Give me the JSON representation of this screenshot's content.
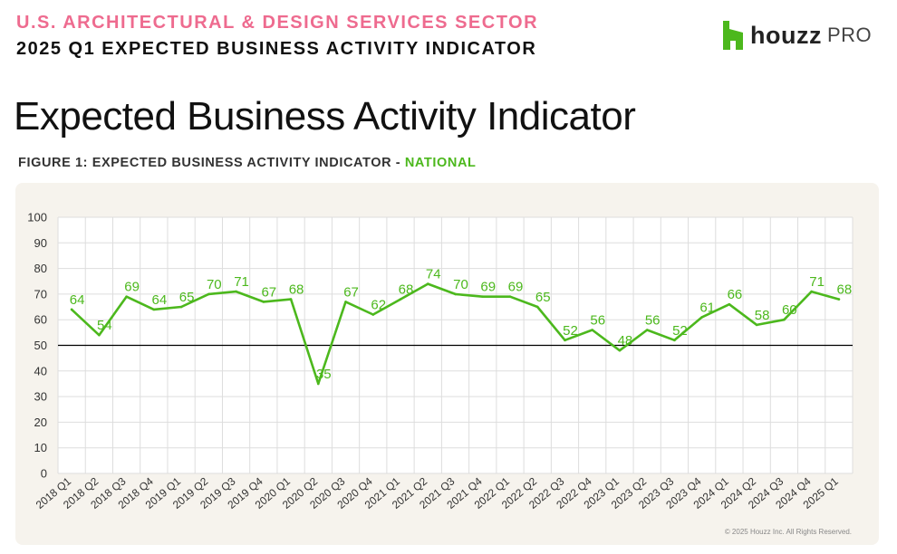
{
  "header": {
    "sector": "U.S. ARCHITECTURAL & DESIGN SERVICES SECTOR",
    "report": "2025 Q1 EXPECTED BUSINESS ACTIVITY INDICATOR"
  },
  "logo": {
    "brand": "houzz",
    "suffix": "PRO",
    "icon": "houzz-logo-icon"
  },
  "page_title": "Expected Business Activity Indicator",
  "figure": {
    "label": "FIGURE 1: EXPECTED BUSINESS ACTIVITY INDICATOR - ",
    "region": "NATIONAL"
  },
  "copyright": "© 2025 Houzz Inc. All Rights Reserved.",
  "colors": {
    "accent_pink": "#EE6B8F",
    "series_green": "#4CB81D",
    "panel_bg": "#F6F3ED"
  },
  "chart_data": {
    "type": "line",
    "title": "",
    "xlabel": "",
    "ylabel": "",
    "ylim": [
      0,
      100
    ],
    "yticks": [
      0,
      10,
      20,
      30,
      40,
      50,
      60,
      70,
      80,
      90,
      100
    ],
    "grid": true,
    "reference_line": 50,
    "categories": [
      "2018 Q1",
      "2018 Q2",
      "2018 Q3",
      "2018 Q4",
      "2019 Q1",
      "2019 Q2",
      "2019 Q3",
      "2019 Q4",
      "2020 Q1",
      "2020 Q2",
      "2020 Q3",
      "2020 Q4",
      "2021 Q1",
      "2021 Q2",
      "2021 Q3",
      "2021 Q4",
      "2022 Q1",
      "2022 Q2",
      "2022 Q3",
      "2022 Q4",
      "2023 Q1",
      "2023 Q2",
      "2023 Q3",
      "2023 Q4",
      "2024 Q1",
      "2024 Q2",
      "2024 Q3",
      "2024 Q4",
      "2025 Q1"
    ],
    "series": [
      {
        "values": [
          64,
          54,
          69,
          64,
          65,
          70,
          71,
          67,
          68,
          35,
          67,
          62,
          68,
          74,
          70,
          69,
          69,
          65,
          52,
          56,
          48,
          56,
          52,
          61,
          66,
          58,
          60,
          71,
          68
        ]
      }
    ]
  }
}
